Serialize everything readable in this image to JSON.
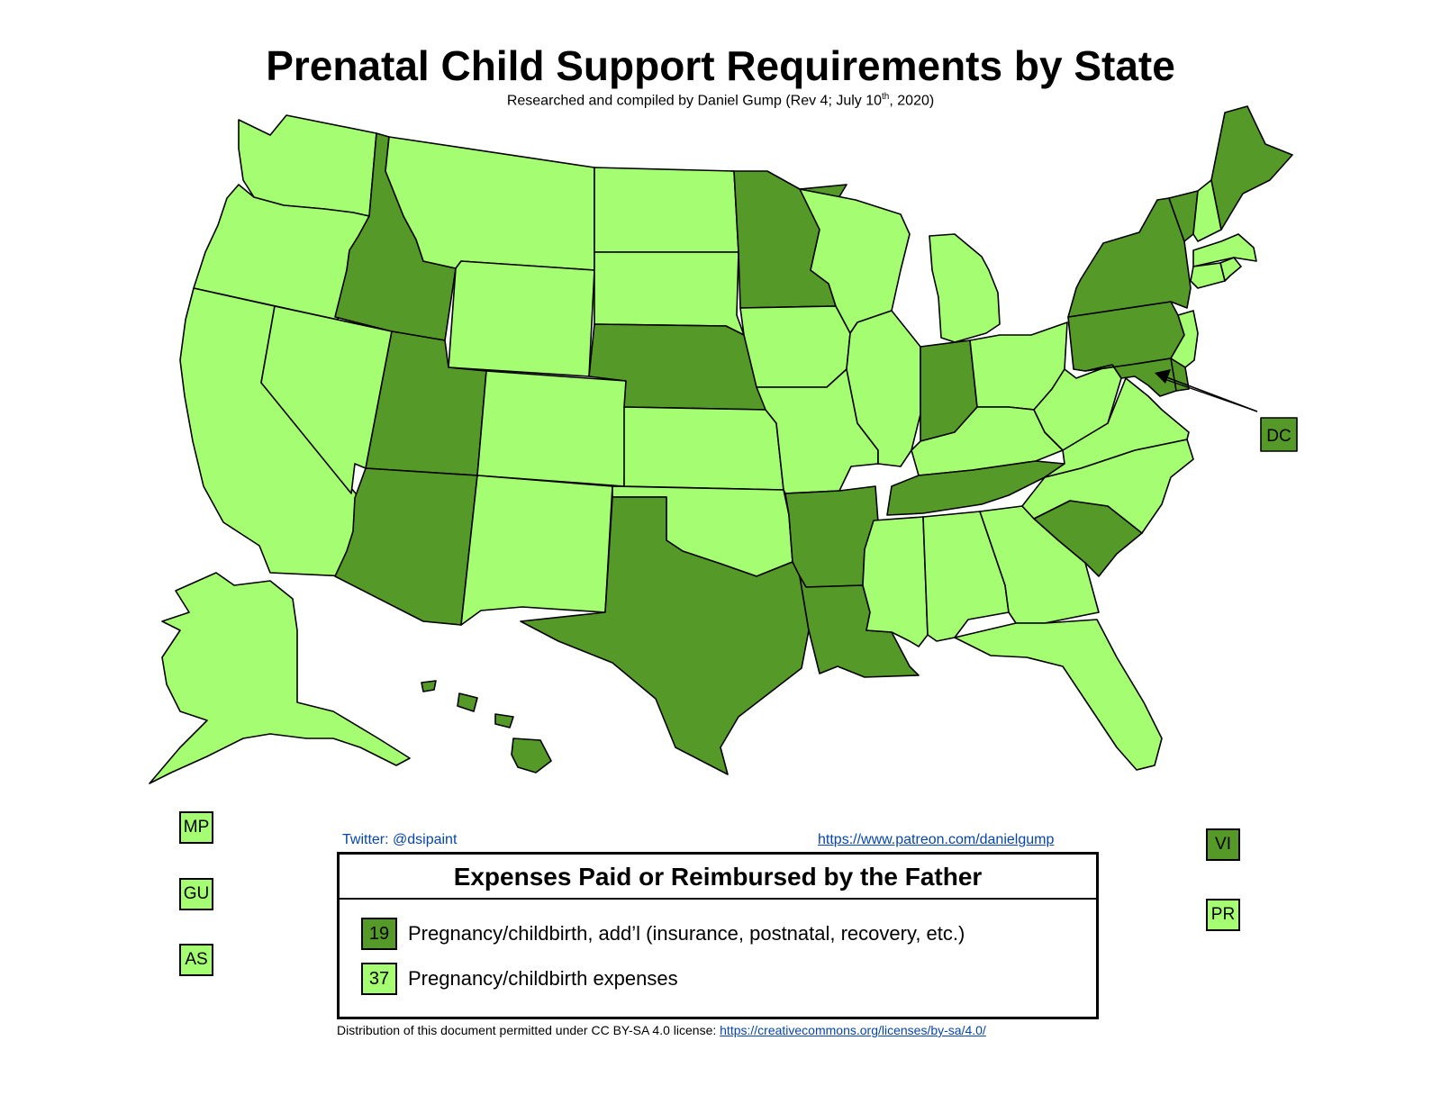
{
  "title": "Prenatal Child Support Requirements by State",
  "subtitle": "Researched and compiled by Daniel Gump (Rev 4; July 10",
  "subtitle_sup": "th",
  "subtitle_end": ", 2020)",
  "colors": {
    "dark_green": "#559928",
    "light_green": "#a5fd72",
    "outline": "#000000",
    "link_blue": "#0645ad"
  },
  "map": {
    "states": [
      {
        "abbr": "WA",
        "category": "light"
      },
      {
        "abbr": "OR",
        "category": "light"
      },
      {
        "abbr": "CA",
        "category": "light"
      },
      {
        "abbr": "NV",
        "category": "light"
      },
      {
        "abbr": "ID",
        "category": "dark"
      },
      {
        "abbr": "MT",
        "category": "light"
      },
      {
        "abbr": "WY",
        "category": "light"
      },
      {
        "abbr": "UT",
        "category": "dark"
      },
      {
        "abbr": "AZ",
        "category": "dark"
      },
      {
        "abbr": "CO",
        "category": "light"
      },
      {
        "abbr": "NM",
        "category": "light"
      },
      {
        "abbr": "ND",
        "category": "light"
      },
      {
        "abbr": "SD",
        "category": "light"
      },
      {
        "abbr": "NE",
        "category": "dark"
      },
      {
        "abbr": "KS",
        "category": "light"
      },
      {
        "abbr": "OK",
        "category": "light"
      },
      {
        "abbr": "TX",
        "category": "dark"
      },
      {
        "abbr": "MN",
        "category": "dark"
      },
      {
        "abbr": "IA",
        "category": "light"
      },
      {
        "abbr": "MO",
        "category": "light"
      },
      {
        "abbr": "AR",
        "category": "dark"
      },
      {
        "abbr": "LA",
        "category": "dark"
      },
      {
        "abbr": "WI",
        "category": "light"
      },
      {
        "abbr": "IL",
        "category": "light"
      },
      {
        "abbr": "MI",
        "category": "light"
      },
      {
        "abbr": "IN",
        "category": "dark"
      },
      {
        "abbr": "OH",
        "category": "light"
      },
      {
        "abbr": "KY",
        "category": "light"
      },
      {
        "abbr": "TN",
        "category": "dark"
      },
      {
        "abbr": "MS",
        "category": "light"
      },
      {
        "abbr": "AL",
        "category": "light"
      },
      {
        "abbr": "GA",
        "category": "light"
      },
      {
        "abbr": "FL",
        "category": "light"
      },
      {
        "abbr": "SC",
        "category": "dark"
      },
      {
        "abbr": "NC",
        "category": "light"
      },
      {
        "abbr": "VA",
        "category": "light"
      },
      {
        "abbr": "WV",
        "category": "light"
      },
      {
        "abbr": "PA",
        "category": "dark"
      },
      {
        "abbr": "NY",
        "category": "dark"
      },
      {
        "abbr": "VT",
        "category": "dark"
      },
      {
        "abbr": "NH",
        "category": "light"
      },
      {
        "abbr": "ME",
        "category": "dark"
      },
      {
        "abbr": "MA",
        "category": "light"
      },
      {
        "abbr": "RI",
        "category": "light"
      },
      {
        "abbr": "CT",
        "category": "light"
      },
      {
        "abbr": "NJ",
        "category": "light"
      },
      {
        "abbr": "DE",
        "category": "dark"
      },
      {
        "abbr": "MD",
        "category": "dark"
      },
      {
        "abbr": "AK",
        "category": "light"
      },
      {
        "abbr": "HI",
        "category": "dark"
      }
    ],
    "dc_label": "DC",
    "territories": {
      "MP": {
        "label": "MP",
        "category": "light"
      },
      "GU": {
        "label": "GU",
        "category": "light"
      },
      "AS": {
        "label": "AS",
        "category": "light"
      },
      "VI": {
        "label": "VI",
        "category": "dark"
      },
      "PR": {
        "label": "PR",
        "category": "light"
      }
    }
  },
  "links": {
    "twitter": "Twitter: @dsipaint",
    "patreon": "https://www.patreon.com/danielgump"
  },
  "legend": {
    "title": "Expenses Paid or Reimbursed by the Father",
    "items": [
      {
        "count": "19",
        "label": "Pregnancy/childbirth, add’l (insurance, postnatal, recovery, etc.)",
        "color": "#559928"
      },
      {
        "count": "37",
        "label": "Pregnancy/childbirth expenses",
        "color": "#a5fd72"
      }
    ]
  },
  "license": {
    "text": "Distribution of this document permitted under CC BY-SA 4.0 license: ",
    "url": "https://creativecommons.org/licenses/by-sa/4.0/"
  }
}
